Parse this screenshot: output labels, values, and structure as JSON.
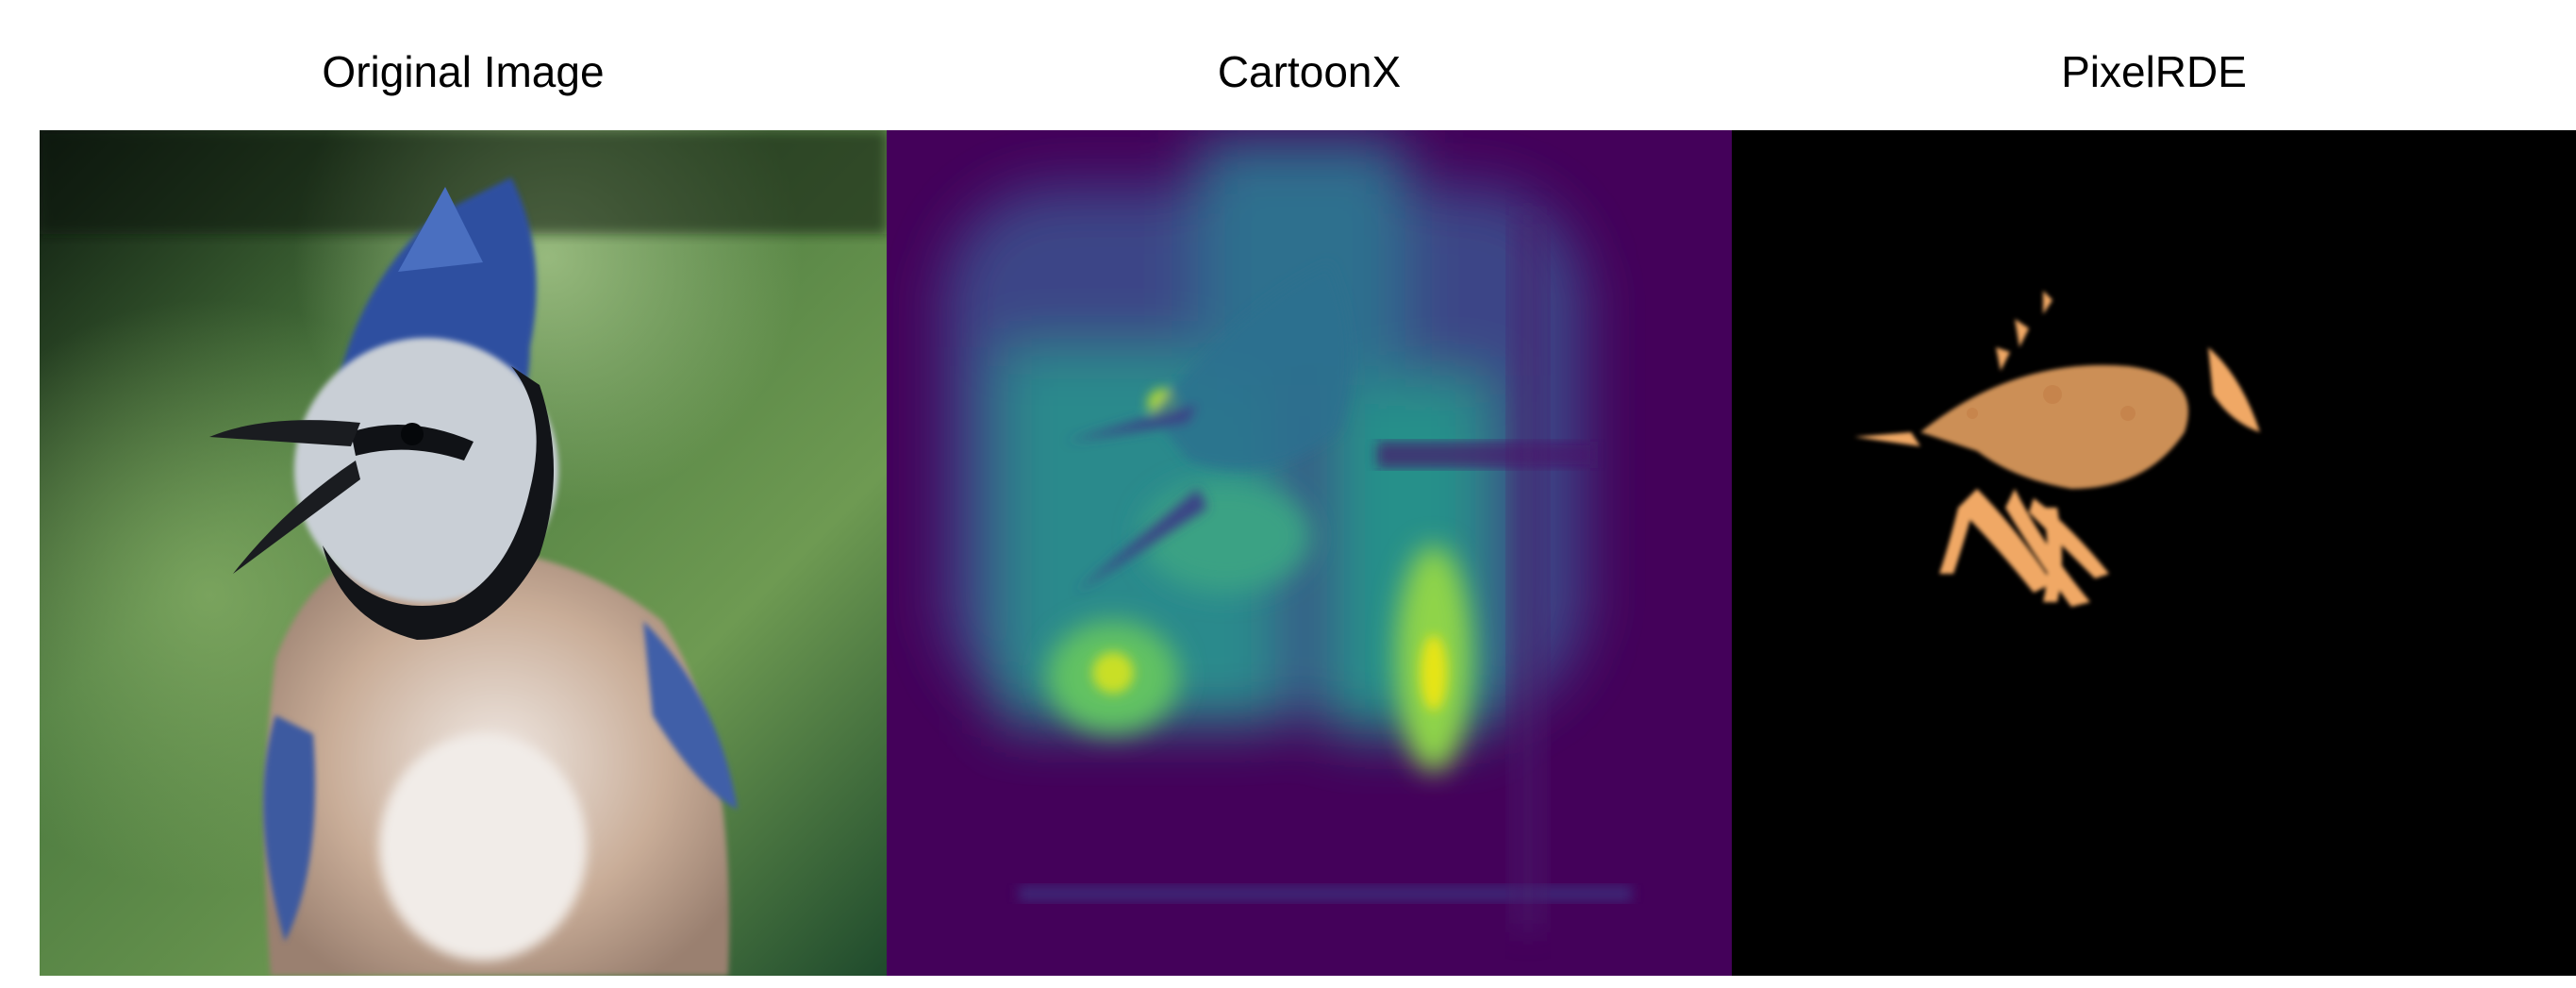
{
  "panels": [
    {
      "title": "Original Image"
    },
    {
      "title": "CartoonX"
    },
    {
      "title": "PixelRDE"
    }
  ]
}
